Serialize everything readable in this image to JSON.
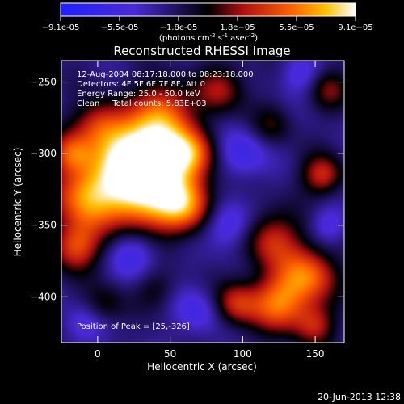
{
  "chart_data": {
    "type": "heatmap",
    "title": "Reconstructed RHESSI Image",
    "xlabel": "Heliocentric X (arcsec)",
    "ylabel": "Heliocentric Y (arcsec)",
    "xlim": [
      -25,
      170
    ],
    "ylim": [
      -432,
      -235
    ],
    "xticks": [
      0,
      50,
      100,
      150
    ],
    "yticks": [
      -250,
      -300,
      -350,
      -400
    ],
    "colorbar": {
      "ticks": [
        "-9.1e-05",
        "-5.5e-05",
        "-1.8e-05",
        "1.8e-05",
        "5.5e-05",
        "9.1e-05"
      ],
      "min": -9.1e-05,
      "max": 9.1e-05,
      "units_prefix": "(photons cm",
      "units_exp1": "-2",
      "units_mid": " s",
      "units_exp2": "-1",
      "units_suffix": " asec",
      "units_exp3": "-2",
      "units_close": ")"
    },
    "annotations": [
      "12-Aug-2004 08:17:18.000 to 08:23:18.000",
      "Detectors: 4F 5F 6F 7F 8F, Att 0",
      "Energy Range: 25.0 - 50.0 keV",
      "Clean     Total counts: 5.83E+03"
    ],
    "peak_label": "Position of Peak = [25,-326]",
    "peak": {
      "x": 25,
      "y": -326
    },
    "blobs": [
      {
        "x": 20,
        "y": -300,
        "s": 18,
        "a": 1.0
      },
      {
        "x": 45,
        "y": -300,
        "s": 16,
        "a": 0.9
      },
      {
        "x": 30,
        "y": -330,
        "s": 18,
        "a": 1.0
      },
      {
        "x": 60,
        "y": -335,
        "s": 14,
        "a": 0.9
      },
      {
        "x": -8,
        "y": -330,
        "s": 16,
        "a": 0.9
      },
      {
        "x": -15,
        "y": -365,
        "s": 12,
        "a": 0.7
      },
      {
        "x": 45,
        "y": -270,
        "s": 14,
        "a": 0.7
      },
      {
        "x": 65,
        "y": -300,
        "s": 12,
        "a": 0.6
      },
      {
        "x": 0,
        "y": -280,
        "s": 12,
        "a": 0.5
      },
      {
        "x": -18,
        "y": -300,
        "s": 10,
        "a": 0.6
      },
      {
        "x": 120,
        "y": -360,
        "s": 14,
        "a": 0.6
      },
      {
        "x": 145,
        "y": -385,
        "s": 14,
        "a": 0.8
      },
      {
        "x": 125,
        "y": -405,
        "s": 14,
        "a": 0.8
      },
      {
        "x": 95,
        "y": -405,
        "s": 11,
        "a": 0.6
      },
      {
        "x": 155,
        "y": -315,
        "s": 10,
        "a": 0.6
      },
      {
        "x": 160,
        "y": -255,
        "s": 10,
        "a": 0.4
      },
      {
        "x": 85,
        "y": -255,
        "s": 12,
        "a": 0.5
      },
      {
        "x": 120,
        "y": -280,
        "s": 10,
        "a": 0.3
      },
      {
        "x": 150,
        "y": -420,
        "s": 10,
        "a": 0.5
      },
      {
        "x": 40,
        "y": -395,
        "s": 10,
        "a": 0.25
      },
      {
        "x": 5,
        "y": -405,
        "s": 10,
        "a": 0.3
      },
      {
        "x": 90,
        "y": -350,
        "s": 12,
        "a": -0.45
      },
      {
        "x": 25,
        "y": -370,
        "s": 12,
        "a": -0.4
      },
      {
        "x": 100,
        "y": -300,
        "s": 12,
        "a": -0.4
      },
      {
        "x": 70,
        "y": -410,
        "s": 12,
        "a": -0.35
      },
      {
        "x": -10,
        "y": -420,
        "s": 10,
        "a": -0.3
      },
      {
        "x": 140,
        "y": -245,
        "s": 10,
        "a": -0.3
      },
      {
        "x": 160,
        "y": -350,
        "s": 9,
        "a": -0.3
      }
    ]
  },
  "footer": {
    "date": "20-Jun-2013 12:38"
  }
}
